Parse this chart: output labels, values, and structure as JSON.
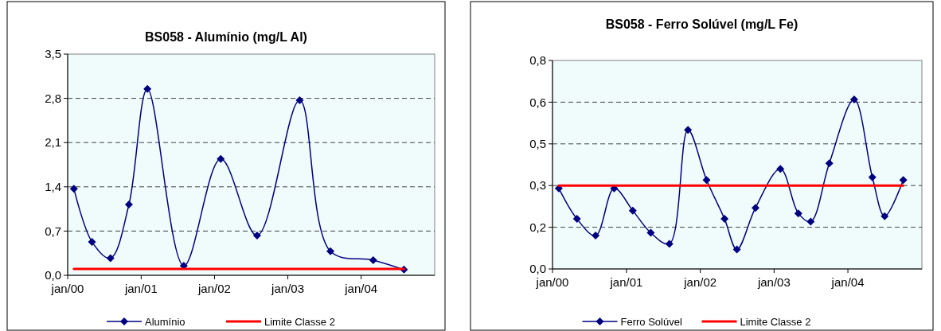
{
  "chart_data": [
    {
      "type": "line",
      "title": "BS058 - Alumínio (mg/L Al)",
      "xlim": [
        "2000-01",
        "2005-01"
      ],
      "xticks": [
        {
          "value": "2000-01",
          "label": "jan/00"
        },
        {
          "value": "2001-01",
          "label": "jan/01"
        },
        {
          "value": "2002-01",
          "label": "jan/02"
        },
        {
          "value": "2003-01",
          "label": "jan/03"
        },
        {
          "value": "2004-01",
          "label": "jan/04"
        }
      ],
      "ylim": [
        0,
        3.5
      ],
      "yticks": [
        {
          "value": 0,
          "label": "0,0"
        },
        {
          "value": 0.7,
          "label": "0,7"
        },
        {
          "value": 1.4,
          "label": "1,4"
        },
        {
          "value": 2.1,
          "label": "2,1"
        },
        {
          "value": 2.8,
          "label": "2,8"
        },
        {
          "value": 3.5,
          "label": "3,5"
        }
      ],
      "grid": "y",
      "legend": "bottom",
      "marker": "diamond",
      "series": [
        {
          "name": "Alumínio",
          "color": "#000080",
          "x": [
            "2000-02",
            "2000-05",
            "2000-08",
            "2000-11",
            "2001-02",
            "2001-08",
            "2002-02",
            "2002-08",
            "2003-03",
            "2003-08",
            "2004-03",
            "2004-08"
          ],
          "values": [
            1.37,
            0.53,
            0.27,
            1.12,
            2.95,
            0.15,
            1.84,
            0.63,
            2.77,
            0.38,
            0.24,
            0.09
          ]
        },
        {
          "name": "Limite Classe 2",
          "color": "#ff0000",
          "type": "line",
          "marker": "none",
          "x": [
            "2000-02",
            "2004-08"
          ],
          "values": [
            0.1,
            0.1
          ]
        }
      ]
    },
    {
      "type": "line",
      "title": "BS058 - Ferro Solúvel (mg/L Fe)",
      "xlim": [
        "2000-01",
        "2005-01"
      ],
      "xticks": [
        {
          "value": "2000-01",
          "label": "jan/00"
        },
        {
          "value": "2001-01",
          "label": "jan/01"
        },
        {
          "value": "2002-01",
          "label": "jan/02"
        },
        {
          "value": "2003-01",
          "label": "jan/03"
        },
        {
          "value": "2004-01",
          "label": "jan/04"
        }
      ],
      "ylim": [
        0,
        0.75
      ],
      "yticks": [
        {
          "value": 0,
          "label": "0,0"
        },
        {
          "value": 0.15,
          "label": "0,2"
        },
        {
          "value": 0.3,
          "label": "0,3"
        },
        {
          "value": 0.45,
          "label": "0,5"
        },
        {
          "value": 0.6,
          "label": "0,6"
        },
        {
          "value": 0.75,
          "label": "0,8"
        }
      ],
      "grid": "y",
      "legend": "bottom",
      "marker": "diamond",
      "series": [
        {
          "name": "Ferro Solúvel",
          "color": "#000080",
          "x": [
            "2000-02",
            "2000-05",
            "2000-08",
            "2000-11",
            "2001-02",
            "2001-05",
            "2001-08",
            "2001-11",
            "2002-02",
            "2002-05",
            "2002-07",
            "2002-10",
            "2003-02",
            "2003-05",
            "2003-07",
            "2003-10",
            "2004-02",
            "2004-05",
            "2004-07",
            "2004-10"
          ],
          "values": [
            0.29,
            0.18,
            0.12,
            0.29,
            0.21,
            0.13,
            0.09,
            0.5,
            0.32,
            0.18,
            0.07,
            0.22,
            0.36,
            0.2,
            0.17,
            0.38,
            0.61,
            0.33,
            0.19,
            0.32
          ]
        },
        {
          "name": "Limite Classe 2",
          "color": "#ff0000",
          "type": "line",
          "marker": "none",
          "x": [
            "2000-02",
            "2004-10"
          ],
          "values": [
            0.3,
            0.3
          ]
        }
      ]
    }
  ]
}
